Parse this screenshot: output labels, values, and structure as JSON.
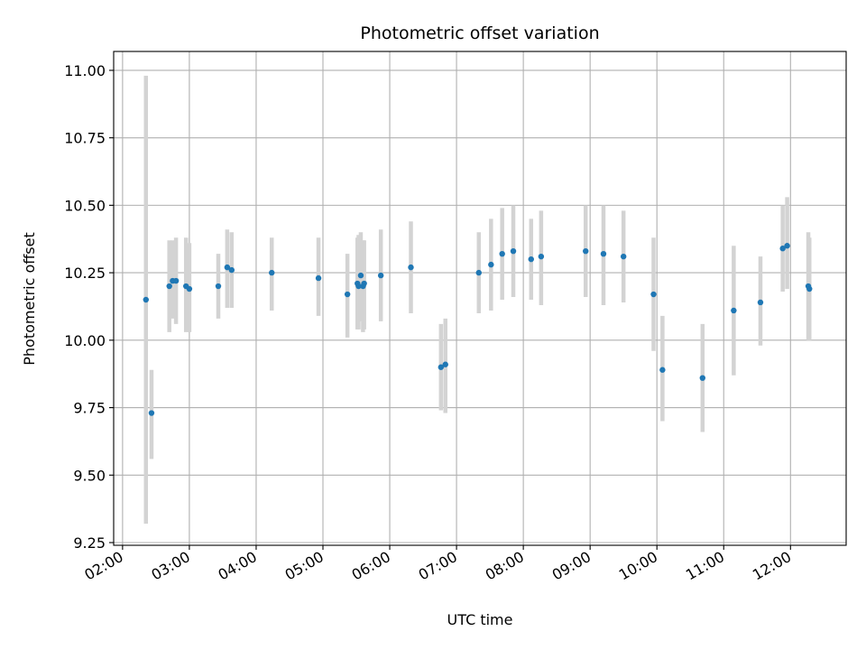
{
  "chart_data": {
    "type": "scatter",
    "title": "Photometric offset variation",
    "xlabel": "UTC time",
    "ylabel": "Photometric offset",
    "x_tick_labels": [
      "02:00",
      "03:00",
      "04:00",
      "05:00",
      "06:00",
      "07:00",
      "08:00",
      "09:00",
      "10:00",
      "11:00",
      "12:00"
    ],
    "y_tick_labels": [
      "9.25",
      "9.50",
      "9.75",
      "10.00",
      "10.25",
      "10.50",
      "10.75",
      "11.00"
    ],
    "x_range": [
      "01:52",
      "12:50"
    ],
    "ylim": [
      9.24,
      11.07
    ],
    "grid": true,
    "error_bars": true,
    "colors": {
      "points": "#1f77b4",
      "error_bars": "#d3d3d3",
      "grid": "#b0b0b0"
    },
    "points": [
      {
        "x": "02:21",
        "y": 10.15,
        "ylow": 9.32,
        "yhigh": 10.98
      },
      {
        "x": "02:26",
        "y": 9.73,
        "ylow": 9.56,
        "yhigh": 9.89
      },
      {
        "x": "02:42",
        "y": 10.2,
        "ylow": 10.03,
        "yhigh": 10.37
      },
      {
        "x": "02:45",
        "y": 10.22,
        "ylow": 10.08,
        "yhigh": 10.37
      },
      {
        "x": "02:48",
        "y": 10.22,
        "ylow": 10.06,
        "yhigh": 10.38
      },
      {
        "x": "02:57",
        "y": 10.2,
        "ylow": 10.03,
        "yhigh": 10.38
      },
      {
        "x": "03:00",
        "y": 10.19,
        "ylow": 10.03,
        "yhigh": 10.36
      },
      {
        "x": "03:26",
        "y": 10.2,
        "ylow": 10.08,
        "yhigh": 10.32
      },
      {
        "x": "03:34",
        "y": 10.27,
        "ylow": 10.12,
        "yhigh": 10.41
      },
      {
        "x": "03:38",
        "y": 10.26,
        "ylow": 10.12,
        "yhigh": 10.4
      },
      {
        "x": "04:14",
        "y": 10.25,
        "ylow": 10.11,
        "yhigh": 10.38
      },
      {
        "x": "04:56",
        "y": 10.23,
        "ylow": 10.09,
        "yhigh": 10.38
      },
      {
        "x": "05:22",
        "y": 10.17,
        "ylow": 10.01,
        "yhigh": 10.32
      },
      {
        "x": "05:31",
        "y": 10.21,
        "ylow": 10.04,
        "yhigh": 10.38
      },
      {
        "x": "05:32",
        "y": 10.2,
        "ylow": 10.04,
        "yhigh": 10.39
      },
      {
        "x": "05:34",
        "y": 10.24,
        "ylow": 10.07,
        "yhigh": 10.4
      },
      {
        "x": "05:36",
        "y": 10.2,
        "ylow": 10.03,
        "yhigh": 10.37
      },
      {
        "x": "05:37",
        "y": 10.21,
        "ylow": 10.04,
        "yhigh": 10.37
      },
      {
        "x": "05:52",
        "y": 10.24,
        "ylow": 10.07,
        "yhigh": 10.41
      },
      {
        "x": "06:19",
        "y": 10.27,
        "ylow": 10.1,
        "yhigh": 10.44
      },
      {
        "x": "06:46",
        "y": 9.9,
        "ylow": 9.74,
        "yhigh": 10.06
      },
      {
        "x": "06:50",
        "y": 9.91,
        "ylow": 9.73,
        "yhigh": 10.08
      },
      {
        "x": "07:20",
        "y": 10.25,
        "ylow": 10.1,
        "yhigh": 10.4
      },
      {
        "x": "07:31",
        "y": 10.28,
        "ylow": 10.11,
        "yhigh": 10.45
      },
      {
        "x": "07:41",
        "y": 10.32,
        "ylow": 10.15,
        "yhigh": 10.49
      },
      {
        "x": "07:51",
        "y": 10.33,
        "ylow": 10.16,
        "yhigh": 10.5
      },
      {
        "x": "08:07",
        "y": 10.3,
        "ylow": 10.15,
        "yhigh": 10.45
      },
      {
        "x": "08:16",
        "y": 10.31,
        "ylow": 10.13,
        "yhigh": 10.48
      },
      {
        "x": "08:56",
        "y": 10.33,
        "ylow": 10.16,
        "yhigh": 10.5
      },
      {
        "x": "09:12",
        "y": 10.32,
        "ylow": 10.13,
        "yhigh": 10.5
      },
      {
        "x": "09:30",
        "y": 10.31,
        "ylow": 10.14,
        "yhigh": 10.48
      },
      {
        "x": "09:57",
        "y": 10.17,
        "ylow": 9.96,
        "yhigh": 10.38
      },
      {
        "x": "10:05",
        "y": 9.89,
        "ylow": 9.7,
        "yhigh": 10.09
      },
      {
        "x": "10:41",
        "y": 9.86,
        "ylow": 9.66,
        "yhigh": 10.06
      },
      {
        "x": "11:09",
        "y": 10.11,
        "ylow": 9.87,
        "yhigh": 10.35
      },
      {
        "x": "11:33",
        "y": 10.14,
        "ylow": 9.98,
        "yhigh": 10.31
      },
      {
        "x": "11:53",
        "y": 10.34,
        "ylow": 10.18,
        "yhigh": 10.5
      },
      {
        "x": "11:57",
        "y": 10.35,
        "ylow": 10.19,
        "yhigh": 10.53
      },
      {
        "x": "12:16",
        "y": 10.2,
        "ylow": 10.0,
        "yhigh": 10.4
      },
      {
        "x": "12:17",
        "y": 10.19,
        "ylow": 10.0,
        "yhigh": 10.38
      }
    ]
  }
}
